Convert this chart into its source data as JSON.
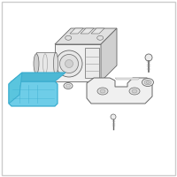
{
  "background_color": "#ffffff",
  "border_color": "#cccccc",
  "fig_width": 2.0,
  "fig_height": 2.0,
  "dpi": 100,
  "line_color": "#666666",
  "detail_color": "#999999",
  "highlight_fill": "#6ecde8",
  "highlight_stroke": "#3aadcf",
  "highlight_fill2": "#4db8d4",
  "highlight_fill3": "#5ac5de",
  "gray_fill": "#f0f0f0",
  "gray_mid": "#e0e0e0",
  "gray_dark": "#d0d0d0"
}
